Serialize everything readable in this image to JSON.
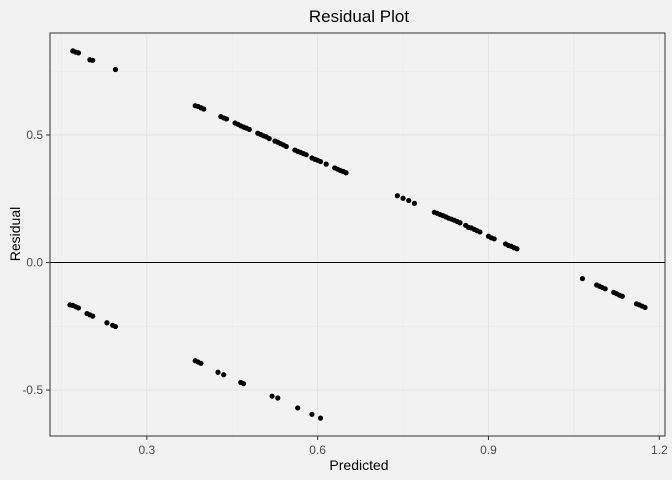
{
  "chart_data": {
    "type": "scatter",
    "title": "Residual Plot",
    "xlabel": "Predicted",
    "ylabel": "Residual",
    "xlim": [
      0.13,
      1.21
    ],
    "ylim": [
      -0.68,
      0.9
    ],
    "x_ticks": [
      {
        "value": 0.3,
        "label": "0.3"
      },
      {
        "value": 0.6,
        "label": "0.6"
      },
      {
        "value": 0.9,
        "label": "0.9"
      },
      {
        "value": 1.2,
        "label": "1.2"
      }
    ],
    "y_ticks": [
      {
        "value": -0.5,
        "label": "-0.5"
      },
      {
        "value": 0.0,
        "label": "0.0"
      },
      {
        "value": 0.5,
        "label": "0.5"
      }
    ],
    "reference_line_y": 0.0,
    "grid": true,
    "colors": {
      "background": "#f2f2f2",
      "grid_major": "#e3e3e3",
      "grid_minor": "#eaeaea",
      "border": "#333333",
      "points": "#000000",
      "zero_line": "#000000"
    },
    "points": [
      {
        "x": 0.17,
        "y": 0.83
      },
      {
        "x": 0.175,
        "y": 0.825
      },
      {
        "x": 0.18,
        "y": 0.822
      },
      {
        "x": 0.2,
        "y": 0.795
      },
      {
        "x": 0.205,
        "y": 0.793
      },
      {
        "x": 0.245,
        "y": 0.757
      },
      {
        "x": 0.385,
        "y": 0.615
      },
      {
        "x": 0.39,
        "y": 0.612
      },
      {
        "x": 0.395,
        "y": 0.607
      },
      {
        "x": 0.4,
        "y": 0.602
      },
      {
        "x": 0.43,
        "y": 0.572
      },
      {
        "x": 0.435,
        "y": 0.567
      },
      {
        "x": 0.44,
        "y": 0.563
      },
      {
        "x": 0.455,
        "y": 0.547
      },
      {
        "x": 0.46,
        "y": 0.542
      },
      {
        "x": 0.465,
        "y": 0.536
      },
      {
        "x": 0.47,
        "y": 0.531
      },
      {
        "x": 0.475,
        "y": 0.527
      },
      {
        "x": 0.48,
        "y": 0.522
      },
      {
        "x": 0.495,
        "y": 0.507
      },
      {
        "x": 0.5,
        "y": 0.502
      },
      {
        "x": 0.505,
        "y": 0.497
      },
      {
        "x": 0.51,
        "y": 0.493
      },
      {
        "x": 0.515,
        "y": 0.486
      },
      {
        "x": 0.525,
        "y": 0.476
      },
      {
        "x": 0.53,
        "y": 0.472
      },
      {
        "x": 0.535,
        "y": 0.466
      },
      {
        "x": 0.54,
        "y": 0.461
      },
      {
        "x": 0.545,
        "y": 0.455
      },
      {
        "x": 0.56,
        "y": 0.441
      },
      {
        "x": 0.565,
        "y": 0.436
      },
      {
        "x": 0.57,
        "y": 0.432
      },
      {
        "x": 0.575,
        "y": 0.427
      },
      {
        "x": 0.58,
        "y": 0.423
      },
      {
        "x": 0.59,
        "y": 0.41
      },
      {
        "x": 0.595,
        "y": 0.405
      },
      {
        "x": 0.6,
        "y": 0.401
      },
      {
        "x": 0.605,
        "y": 0.396
      },
      {
        "x": 0.615,
        "y": 0.386
      },
      {
        "x": 0.63,
        "y": 0.371
      },
      {
        "x": 0.635,
        "y": 0.366
      },
      {
        "x": 0.64,
        "y": 0.361
      },
      {
        "x": 0.645,
        "y": 0.357
      },
      {
        "x": 0.65,
        "y": 0.352
      },
      {
        "x": 0.74,
        "y": 0.262
      },
      {
        "x": 0.75,
        "y": 0.252
      },
      {
        "x": 0.76,
        "y": 0.243
      },
      {
        "x": 0.77,
        "y": 0.232
      },
      {
        "x": 0.805,
        "y": 0.197
      },
      {
        "x": 0.81,
        "y": 0.193
      },
      {
        "x": 0.815,
        "y": 0.188
      },
      {
        "x": 0.82,
        "y": 0.184
      },
      {
        "x": 0.825,
        "y": 0.179
      },
      {
        "x": 0.83,
        "y": 0.174
      },
      {
        "x": 0.835,
        "y": 0.17
      },
      {
        "x": 0.84,
        "y": 0.166
      },
      {
        "x": 0.845,
        "y": 0.161
      },
      {
        "x": 0.85,
        "y": 0.156
      },
      {
        "x": 0.86,
        "y": 0.146
      },
      {
        "x": 0.865,
        "y": 0.138
      },
      {
        "x": 0.87,
        "y": 0.136
      },
      {
        "x": 0.875,
        "y": 0.13
      },
      {
        "x": 0.88,
        "y": 0.125
      },
      {
        "x": 0.885,
        "y": 0.12
      },
      {
        "x": 0.9,
        "y": 0.103
      },
      {
        "x": 0.905,
        "y": 0.097
      },
      {
        "x": 0.91,
        "y": 0.093
      },
      {
        "x": 0.93,
        "y": 0.073
      },
      {
        "x": 0.935,
        "y": 0.067
      },
      {
        "x": 0.94,
        "y": 0.064
      },
      {
        "x": 0.945,
        "y": 0.058
      },
      {
        "x": 0.95,
        "y": 0.054
      },
      {
        "x": 1.065,
        "y": -0.063
      },
      {
        "x": 1.09,
        "y": -0.088
      },
      {
        "x": 1.095,
        "y": -0.093
      },
      {
        "x": 1.1,
        "y": -0.098
      },
      {
        "x": 1.105,
        "y": -0.103
      },
      {
        "x": 1.12,
        "y": -0.117
      },
      {
        "x": 1.125,
        "y": -0.122
      },
      {
        "x": 1.13,
        "y": -0.128
      },
      {
        "x": 1.135,
        "y": -0.132
      },
      {
        "x": 1.16,
        "y": -0.162
      },
      {
        "x": 1.165,
        "y": -0.166
      },
      {
        "x": 1.17,
        "y": -0.171
      },
      {
        "x": 1.175,
        "y": -0.176
      },
      {
        "x": 0.165,
        "y": -0.166
      },
      {
        "x": 0.17,
        "y": -0.168
      },
      {
        "x": 0.175,
        "y": -0.173
      },
      {
        "x": 0.18,
        "y": -0.178
      },
      {
        "x": 0.195,
        "y": -0.2
      },
      {
        "x": 0.2,
        "y": -0.205
      },
      {
        "x": 0.205,
        "y": -0.21
      },
      {
        "x": 0.23,
        "y": -0.236
      },
      {
        "x": 0.24,
        "y": -0.246
      },
      {
        "x": 0.245,
        "y": -0.251
      },
      {
        "x": 0.385,
        "y": -0.385
      },
      {
        "x": 0.39,
        "y": -0.39
      },
      {
        "x": 0.395,
        "y": -0.395
      },
      {
        "x": 0.425,
        "y": -0.43
      },
      {
        "x": 0.435,
        "y": -0.44
      },
      {
        "x": 0.465,
        "y": -0.47
      },
      {
        "x": 0.47,
        "y": -0.475
      },
      {
        "x": 0.52,
        "y": -0.524
      },
      {
        "x": 0.53,
        "y": -0.531
      },
      {
        "x": 0.565,
        "y": -0.57
      },
      {
        "x": 0.59,
        "y": -0.595
      },
      {
        "x": 0.605,
        "y": -0.61
      }
    ]
  }
}
